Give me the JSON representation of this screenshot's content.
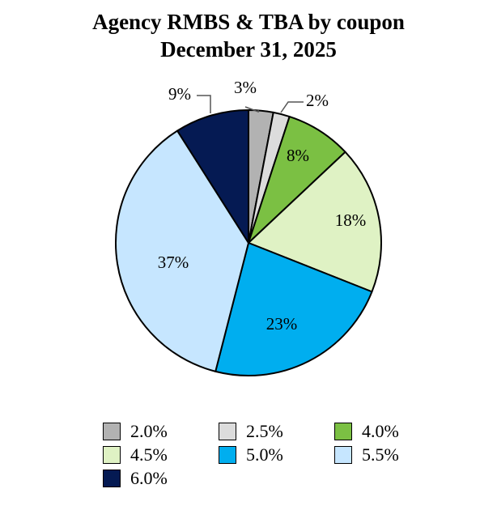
{
  "chart_data": {
    "type": "pie",
    "title": "Agency RMBS & TBA by coupon",
    "subtitle": "December 31, 2025",
    "slices": [
      {
        "name": "2.0%",
        "value": 3,
        "label": "3%",
        "color": "#b2b2b2"
      },
      {
        "name": "2.5%",
        "value": 2,
        "label": "2%",
        "color": "#dcdcdc"
      },
      {
        "name": "4.0%",
        "value": 8,
        "label": "8%",
        "color": "#7bc043"
      },
      {
        "name": "4.5%",
        "value": 18,
        "label": "18%",
        "color": "#dff2c4"
      },
      {
        "name": "5.0%",
        "value": 23,
        "label": "23%",
        "color": "#00aeef"
      },
      {
        "name": "5.5%",
        "value": 37,
        "label": "37%",
        "color": "#c6e6ff"
      },
      {
        "name": "6.0%",
        "value": 9,
        "label": "9%",
        "color": "#051a53"
      }
    ],
    "legend_position": "bottom"
  }
}
